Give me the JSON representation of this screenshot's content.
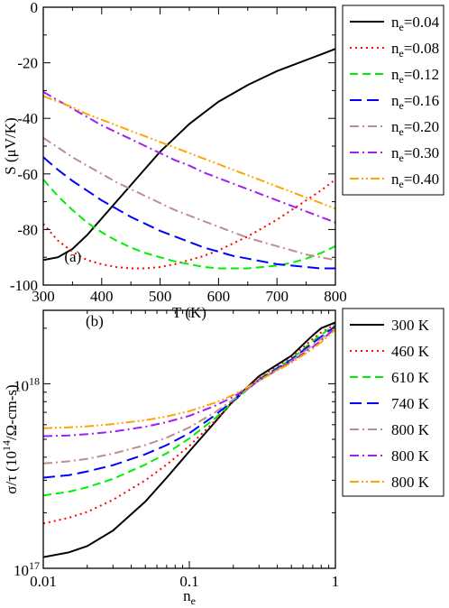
{
  "chart_data": [
    {
      "type": "line",
      "panel_label": "(a)",
      "xlabel": "T (K)",
      "ylabel": "S (μV/K)",
      "xlim": [
        300,
        800
      ],
      "ylim": [
        -100,
        0
      ],
      "x_ticks": [
        300,
        400,
        500,
        600,
        700,
        800
      ],
      "y_ticks": [
        -100,
        -80,
        -60,
        -40,
        -20,
        0
      ],
      "grid": false,
      "legend_position": "outside-right",
      "series": [
        {
          "name": "n_e=0.04",
          "label_main": "n",
          "label_sub": "e",
          "label_rest": "=0.04",
          "color": "#000000",
          "dash": "solid",
          "x": [
            300,
            325,
            350,
            375,
            400,
            425,
            450,
            475,
            500,
            525,
            550,
            575,
            600,
            625,
            650,
            675,
            700,
            725,
            750,
            775,
            800
          ],
          "y": [
            -91,
            -90,
            -87,
            -82,
            -76,
            -70,
            -64,
            -58,
            -52,
            -47,
            -42,
            -38,
            -34,
            -31,
            -28,
            -25.5,
            -23,
            -21,
            -19,
            -17,
            -15
          ]
        },
        {
          "name": "n_e=0.08",
          "label_main": "n",
          "label_sub": "e",
          "label_rest": "=0.08",
          "color": "#ff0000",
          "dash": "dot",
          "x": [
            300,
            325,
            350,
            375,
            400,
            425,
            450,
            475,
            500,
            525,
            550,
            575,
            600,
            625,
            650,
            675,
            700,
            725,
            750,
            775,
            800
          ],
          "y": [
            -78,
            -84,
            -88,
            -91,
            -92.5,
            -93.5,
            -94,
            -94,
            -93.5,
            -92.5,
            -91,
            -89.5,
            -87.5,
            -85,
            -82.5,
            -79.5,
            -76.5,
            -73,
            -69.5,
            -66,
            -62
          ]
        },
        {
          "name": "n_e=0.12",
          "label_main": "n",
          "label_sub": "e",
          "label_rest": "=0.12",
          "color": "#00ee00",
          "dash": "dash",
          "x": [
            300,
            325,
            350,
            375,
            400,
            425,
            450,
            475,
            500,
            525,
            550,
            575,
            600,
            625,
            650,
            675,
            700,
            725,
            750,
            775,
            800
          ],
          "y": [
            -62,
            -68,
            -73,
            -77.5,
            -81,
            -84,
            -86.5,
            -88.5,
            -90,
            -91.5,
            -92.5,
            -93.5,
            -94,
            -94,
            -94,
            -93.5,
            -93,
            -92,
            -90.5,
            -88.5,
            -86
          ]
        },
        {
          "name": "n_e=0.16",
          "label_main": "n",
          "label_sub": "e",
          "label_rest": "=0.16",
          "color": "#0000ff",
          "dash": "longdash",
          "x": [
            300,
            325,
            350,
            375,
            400,
            425,
            450,
            475,
            500,
            525,
            550,
            575,
            600,
            625,
            650,
            675,
            700,
            725,
            750,
            775,
            800
          ],
          "y": [
            -54,
            -58.5,
            -62.5,
            -66,
            -69.5,
            -72.5,
            -75.5,
            -78,
            -80.5,
            -82.5,
            -84.5,
            -86.5,
            -88,
            -89.5,
            -90.5,
            -91.5,
            -92.5,
            -93,
            -93.5,
            -94,
            -94
          ]
        },
        {
          "name": "n_e=0.20",
          "label_main": "n",
          "label_sub": "e",
          "label_rest": "=0.20",
          "color": "#bc8f8f",
          "dash": "dashdot",
          "x": [
            300,
            325,
            350,
            375,
            400,
            425,
            450,
            475,
            500,
            525,
            550,
            575,
            600,
            625,
            650,
            675,
            700,
            725,
            750,
            775,
            800
          ],
          "y": [
            -47,
            -50.5,
            -54,
            -57,
            -60,
            -63,
            -65.5,
            -68,
            -70.5,
            -73,
            -75,
            -77,
            -79,
            -81,
            -83,
            -84.5,
            -86,
            -87.5,
            -89,
            -90,
            -91
          ]
        },
        {
          "name": "n_e=0.30",
          "label_main": "n",
          "label_sub": "e",
          "label_rest": "=0.30",
          "color": "#a020f0",
          "dash": "dashdot",
          "x": [
            300,
            325,
            350,
            375,
            400,
            425,
            450,
            475,
            500,
            525,
            550,
            575,
            600,
            625,
            650,
            675,
            700,
            725,
            750,
            775,
            800
          ],
          "y": [
            -30.5,
            -33.5,
            -36.5,
            -39.5,
            -42.5,
            -45,
            -47.5,
            -50,
            -52.5,
            -55,
            -57,
            -59.5,
            -61.5,
            -63.5,
            -65.5,
            -67.5,
            -69.5,
            -71.5,
            -73.5,
            -75.5,
            -77.5
          ]
        },
        {
          "name": "n_e=0.40",
          "label_main": "n",
          "label_sub": "e",
          "label_rest": "=0.40",
          "color": "#ffa500",
          "dash": "dashdotdot",
          "x": [
            300,
            325,
            350,
            375,
            400,
            425,
            450,
            475,
            500,
            525,
            550,
            575,
            600,
            625,
            650,
            675,
            700,
            725,
            750,
            775,
            800
          ],
          "y": [
            -32,
            -34,
            -36,
            -38.5,
            -40.5,
            -42.5,
            -44.5,
            -46.5,
            -48.5,
            -50.5,
            -52.5,
            -54.5,
            -56.5,
            -58.5,
            -60.5,
            -62.5,
            -64.5,
            -66.5,
            -68.5,
            -70.5,
            -72.5
          ]
        }
      ]
    },
    {
      "type": "line",
      "panel_label": "(b)",
      "xlabel": "n_e",
      "xlabel_main": "n",
      "xlabel_sub": "e",
      "ylabel": "σ/τ (10^14/Ω-cm-s)",
      "ylabel_prefix": "σ/τ (10",
      "ylabel_sup": "14",
      "ylabel_suffix": "/Ω-cm-s)",
      "x_scale": "log",
      "y_scale": "log",
      "xlim": [
        0.01,
        1
      ],
      "ylim": [
        1e+17,
        2.5e+18
      ],
      "x_ticks": [
        {
          "value": 0.01,
          "label": "0.01"
        },
        {
          "value": 0.1,
          "label": "0.1"
        },
        {
          "value": 1,
          "label": "1"
        }
      ],
      "y_ticks": [
        {
          "value": 1e+17,
          "base": "10",
          "exp": "17"
        },
        {
          "value": 1e+18,
          "base": "10",
          "exp": "18"
        }
      ],
      "grid": false,
      "legend_position": "outside-right",
      "series": [
        {
          "name": "300 K",
          "color": "#000000",
          "dash": "solid",
          "x": [
            0.01,
            0.015,
            0.02,
            0.03,
            0.05,
            0.07,
            0.1,
            0.15,
            0.2,
            0.3,
            0.5,
            0.7,
            0.8,
            1.0
          ],
          "y": [
            1.15e+17,
            1.22e+17,
            1.32e+17,
            1.6e+17,
            2.3e+17,
            3.1e+17,
            4.3e+17,
            6.2e+17,
            8.1e+17,
            1.1e+18,
            1.42e+18,
            1.83e+18,
            2e+18,
            2.15e+18
          ]
        },
        {
          "name": "460 K",
          "color": "#ff0000",
          "dash": "dot",
          "x": [
            0.01,
            0.015,
            0.02,
            0.03,
            0.05,
            0.07,
            0.1,
            0.15,
            0.2,
            0.3,
            0.5,
            0.7,
            0.8,
            1.0
          ],
          "y": [
            1.75e+17,
            1.88e+17,
            2.02e+17,
            2.35e+17,
            3e+17,
            3.65e+17,
            4.6e+17,
            6.3e+17,
            8e+17,
            1.08e+18,
            1.38e+18,
            1.75e+18,
            1.9e+18,
            2.1e+18
          ]
        },
        {
          "name": "610 K",
          "color": "#00ee00",
          "dash": "dash",
          "x": [
            0.01,
            0.015,
            0.02,
            0.03,
            0.05,
            0.07,
            0.1,
            0.15,
            0.2,
            0.3,
            0.5,
            0.7,
            0.8,
            1.0
          ],
          "y": [
            2.48e+17,
            2.6e+17,
            2.75e+17,
            3.05e+17,
            3.65e+17,
            4.2e+17,
            5.05e+17,
            6.5e+17,
            8e+17,
            1.06e+18,
            1.36e+18,
            1.7e+18,
            1.85e+18,
            2.08e+18
          ]
        },
        {
          "name": "740 K",
          "color": "#0000ff",
          "dash": "longdash",
          "x": [
            0.01,
            0.015,
            0.02,
            0.03,
            0.05,
            0.07,
            0.1,
            0.15,
            0.2,
            0.3,
            0.5,
            0.7,
            0.8,
            1.0
          ],
          "y": [
            3.1e+17,
            3.2e+17,
            3.35e+17,
            3.62e+17,
            4.15e+17,
            4.65e+17,
            5.4e+17,
            6.75e+17,
            8.1e+17,
            1.05e+18,
            1.35e+18,
            1.66e+18,
            1.8e+18,
            2.05e+18
          ]
        },
        {
          "name": "800 K",
          "color": "#bc8f8f",
          "dash": "dashdot",
          "x": [
            0.01,
            0.015,
            0.02,
            0.03,
            0.05,
            0.07,
            0.1,
            0.15,
            0.2,
            0.3,
            0.5,
            0.7,
            0.8,
            1.0
          ],
          "y": [
            3.7e+17,
            3.8e+17,
            3.92e+17,
            4.18e+17,
            4.65e+17,
            5.1e+17,
            5.8e+17,
            7e+17,
            8.2e+17,
            1.04e+18,
            1.33e+18,
            1.62e+18,
            1.76e+18,
            2.02e+18
          ]
        },
        {
          "name": "800 K",
          "color": "#a020f0",
          "dash": "dashdot",
          "x": [
            0.01,
            0.015,
            0.02,
            0.03,
            0.05,
            0.07,
            0.1,
            0.15,
            0.2,
            0.3,
            0.5,
            0.7,
            0.8,
            1.0
          ],
          "y": [
            5.2e+17,
            5.25e+17,
            5.33e+17,
            5.5e+17,
            5.85e+17,
            6.2e+17,
            6.7e+17,
            7.6e+17,
            8.5e+17,
            1.04e+18,
            1.32e+18,
            1.58e+18,
            1.72e+18,
            2e+18
          ]
        },
        {
          "name": "800 K",
          "color": "#ffa500",
          "dash": "dashdotdot",
          "x": [
            0.01,
            0.015,
            0.02,
            0.03,
            0.05,
            0.07,
            0.1,
            0.15,
            0.2,
            0.3,
            0.5,
            0.7,
            0.8,
            1.0
          ],
          "y": [
            5.75e+17,
            5.8e+17,
            5.88e+17,
            6.05e+17,
            6.35e+17,
            6.65e+17,
            7.1e+17,
            7.9e+17,
            8.7e+17,
            1.04e+18,
            1.3e+18,
            1.55e+18,
            1.68e+18,
            1.96e+18
          ]
        }
      ]
    }
  ]
}
